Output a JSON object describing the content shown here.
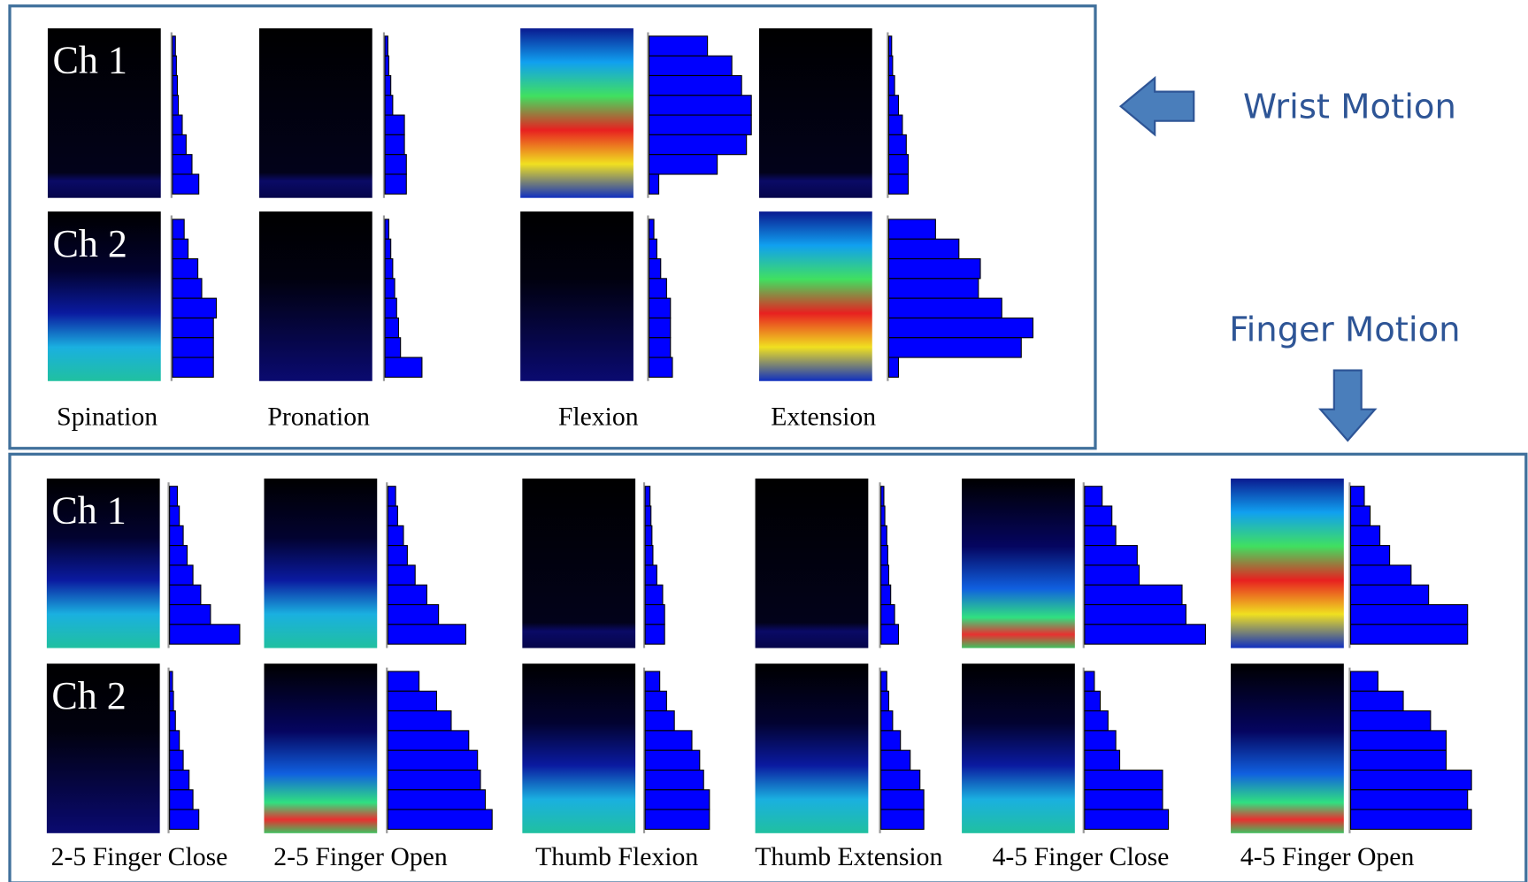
{
  "wrist_motion": {
    "label": "Wrist Motion",
    "channel_labels": [
      "Ch 1",
      "Ch 2"
    ],
    "panels": [
      {
        "name": "Spination",
        "ch1": [
          3,
          4,
          5,
          6,
          10,
          14,
          20,
          27
        ],
        "ch2": [
          12,
          16,
          26,
          30,
          45,
          42,
          42,
          42
        ]
      },
      {
        "name": "Pronation",
        "ch1": [
          3,
          4,
          6,
          8,
          20,
          20,
          22,
          22
        ],
        "ch2": [
          4,
          6,
          8,
          10,
          12,
          14,
          16,
          38
        ]
      },
      {
        "name": "Flexion",
        "ch1": [
          60,
          85,
          95,
          105,
          105,
          100,
          70,
          10
        ],
        "ch2": [
          5,
          8,
          12,
          18,
          22,
          22,
          22,
          24
        ]
      },
      {
        "name": "Extension",
        "ch1": [
          3,
          4,
          6,
          10,
          14,
          18,
          20,
          20
        ],
        "ch2": [
          48,
          72,
          94,
          92,
          116,
          148,
          136,
          10
        ]
      }
    ]
  },
  "finger_motion": {
    "label": "Finger Motion",
    "channel_labels": [
      "Ch 1",
      "Ch 2"
    ],
    "panels": [
      {
        "name": "2-5 Finger Close",
        "ch1": [
          8,
          10,
          14,
          18,
          24,
          32,
          42,
          72
        ],
        "ch2": [
          3,
          4,
          6,
          10,
          14,
          20,
          24,
          30
        ]
      },
      {
        "name": "2-5 Finger Open",
        "ch1": [
          8,
          10,
          16,
          20,
          28,
          40,
          52,
          80
        ],
        "ch2": [
          32,
          50,
          65,
          83,
          92,
          95,
          100,
          107
        ]
      },
      {
        "name": "Thumb Flexion",
        "ch1": [
          5,
          6,
          7,
          8,
          12,
          18,
          20,
          20
        ],
        "ch2": [
          15,
          22,
          30,
          48,
          56,
          60,
          66,
          66
        ]
      },
      {
        "name": "Thumb Extension",
        "ch1": [
          3,
          4,
          6,
          7,
          8,
          10,
          14,
          18
        ],
        "ch2": [
          6,
          8,
          12,
          20,
          30,
          40,
          44,
          44
        ]
      },
      {
        "name": "4-5 Finger Close",
        "ch1": [
          18,
          28,
          32,
          54,
          56,
          100,
          104,
          124
        ],
        "ch2": [
          10,
          16,
          24,
          32,
          36,
          80,
          80,
          86
        ]
      },
      {
        "name": "4-5 Finger Open",
        "ch1": [
          14,
          20,
          30,
          40,
          62,
          80,
          120,
          120
        ],
        "ch2": [
          28,
          54,
          82,
          98,
          98,
          124,
          120,
          124
        ]
      }
    ]
  }
}
